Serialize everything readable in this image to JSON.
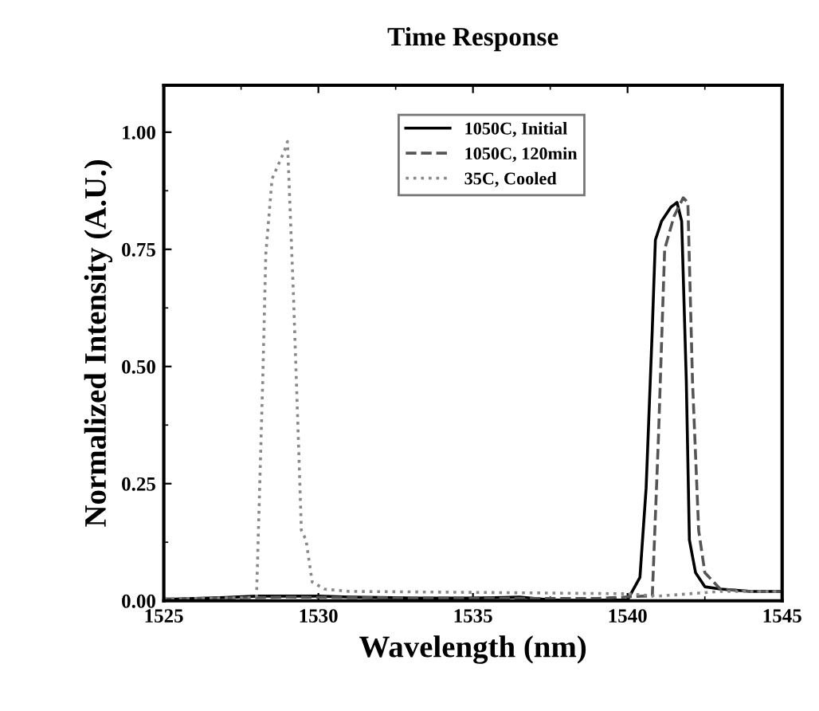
{
  "chart_data": {
    "type": "line",
    "title": "Time Response",
    "xlabel": "Wavelength (nm)",
    "ylabel": "Normalized Intensity (A.U.)",
    "xlim": [
      1525,
      1545
    ],
    "xticks": [
      1525,
      1530,
      1535,
      1540,
      1545
    ],
    "ylim": [
      0,
      1.1
    ],
    "yticks": [
      {
        "value": 0,
        "label": "0.00"
      },
      {
        "value": 0.25,
        "label": "0.25"
      },
      {
        "value": 0.5,
        "label": "0.50"
      },
      {
        "value": 0.75,
        "label": "0.75"
      },
      {
        "value": 1.0,
        "label": "1.00"
      }
    ],
    "legend": "top",
    "grid": false,
    "series": [
      {
        "name": "1050C, Initial",
        "color": "#000000",
        "line_style": "solid",
        "x": [
          1525,
          1526,
          1527,
          1528,
          1529,
          1530,
          1531,
          1532,
          1533,
          1534,
          1535,
          1536,
          1536.5,
          1537,
          1537.5,
          1538,
          1539,
          1540,
          1540.4,
          1540.6,
          1540.8,
          1540.9,
          1541.1,
          1541.4,
          1541.6,
          1541.75,
          1541.9,
          1542.0,
          1542.2,
          1542.5,
          1543,
          1544,
          1545
        ],
        "values": [
          0.003,
          0.005,
          0.007,
          0.01,
          0.01,
          0.01,
          0.008,
          0.007,
          0.006,
          0.006,
          0.006,
          0.007,
          0.008,
          0.005,
          0.002,
          0.001,
          0.001,
          0.002,
          0.05,
          0.24,
          0.58,
          0.77,
          0.81,
          0.84,
          0.85,
          0.81,
          0.47,
          0.13,
          0.06,
          0.03,
          0.025,
          0.02,
          0.02
        ]
      },
      {
        "name": "1050C, 120min",
        "color": "#555555",
        "line_style": "dashed",
        "x": [
          1525,
          1527,
          1529,
          1531,
          1533,
          1535,
          1537,
          1539,
          1540.5,
          1540.8,
          1541.0,
          1541.2,
          1541.5,
          1541.8,
          1541.95,
          1542.1,
          1542.3,
          1542.5,
          1543,
          1544,
          1545
        ],
        "values": [
          0.004,
          0.006,
          0.008,
          0.007,
          0.006,
          0.006,
          0.005,
          0.005,
          0.01,
          0.01,
          0.35,
          0.75,
          0.82,
          0.86,
          0.85,
          0.47,
          0.15,
          0.06,
          0.025,
          0.02,
          0.02
        ]
      },
      {
        "name": "35C, Cooled",
        "color": "#888888",
        "line_style": "dotted",
        "x": [
          1525,
          1526,
          1527,
          1527.8,
          1528.0,
          1528.2,
          1528.3,
          1528.5,
          1528.9,
          1529.0,
          1529.1,
          1529.2,
          1529.35,
          1529.45,
          1529.6,
          1529.8,
          1530.2,
          1531,
          1535,
          1540,
          1541,
          1543,
          1545
        ],
        "values": [
          0.004,
          0.005,
          0.006,
          0.007,
          0.01,
          0.47,
          0.74,
          0.9,
          0.96,
          0.98,
          0.81,
          0.64,
          0.35,
          0.15,
          0.13,
          0.04,
          0.025,
          0.02,
          0.018,
          0.015,
          0.01,
          0.02,
          0.02
        ]
      }
    ]
  }
}
